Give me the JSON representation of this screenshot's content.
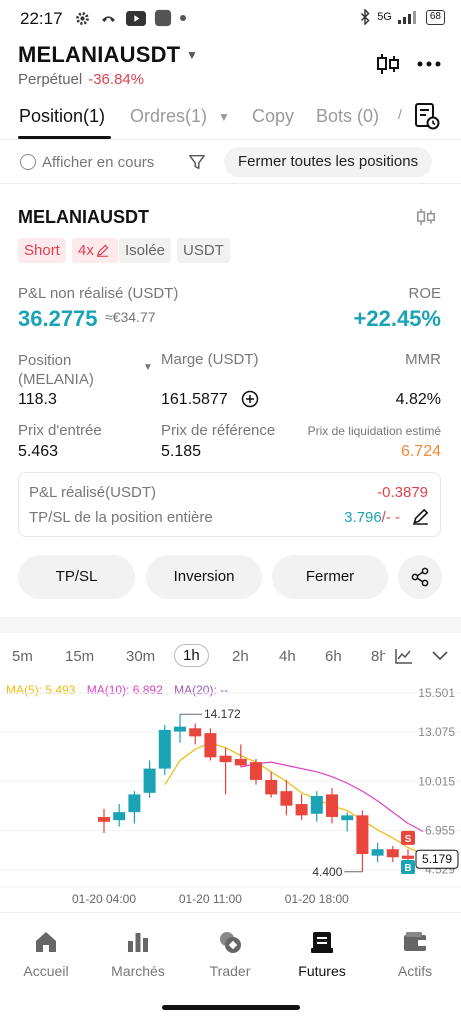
{
  "status_bar": {
    "time": "22:17",
    "signal": "5G",
    "battery": "68"
  },
  "header": {
    "symbol": "MELANIAUSDT",
    "contract_type": "Perpétuel",
    "change": "-36.84%"
  },
  "tabs": [
    {
      "label": "Position(1)",
      "active": true
    },
    {
      "label": "Ordres(1)"
    },
    {
      "label": "Copy"
    },
    {
      "label": "Bots (0)"
    }
  ],
  "filter": {
    "show_current_label": "Afficher en cours",
    "close_all_label": "Fermer toutes les positions"
  },
  "position": {
    "symbol": "MELANIAUSDT",
    "tags": {
      "side": "Short",
      "leverage": "4x",
      "margin_mode": "Isolée",
      "asset": "USDT"
    },
    "pnl_label": "P&L non réalisé (USDT)",
    "pnl_value": "36.2775",
    "pnl_fiat": "≈€34.77",
    "roe_label": "ROE",
    "roe_value": "+22.45%",
    "size_label": "Position (MELANIA)",
    "size_value": "118.3",
    "margin_label": "Marge (USDT)",
    "margin_value": "161.5877",
    "mmr_label": "MMR",
    "mmr_value": "4.82%",
    "entry_label": "Prix d'entrée",
    "entry_value": "5.463",
    "mark_label": "Prix de référence",
    "mark_value": "5.185",
    "liq_label": "Prix de liquidation estimé",
    "liq_value": "6.724",
    "realized_label": "P&L réalisé(USDT)",
    "realized_value": "-0.3879",
    "tpsl_label": "TP/SL de la position entière",
    "tpsl_value": "3.796",
    "tpsl_suffix": "/- -"
  },
  "actions": {
    "tpsl": "TP/SL",
    "reverse": "Inversion",
    "close": "Fermer"
  },
  "chart": {
    "timeframes": [
      "5m",
      "15m",
      "30m",
      "1h",
      "2h",
      "4h",
      "6h",
      "8h"
    ],
    "active_timeframe": "1h",
    "ma5": "MA(5): 5.493",
    "ma10": "MA(10): 6.892",
    "ma20": "MA(20): --",
    "colors": {
      "up": "#1aa3b4",
      "down": "#e8453c",
      "ma5": "#f0b90b",
      "ma10": "#e040c8",
      "ma20": "#9b59b6"
    }
  },
  "chart_data": {
    "type": "candlestick",
    "y_ticks": [
      "15.501",
      "13.075",
      "10.015",
      "6.955",
      "4.529"
    ],
    "x_ticks": [
      "01-20 04:00",
      "01-20 11:00",
      "01-20 18:00"
    ],
    "high_label": "14.172",
    "low_label": "4.400",
    "current_price": "5.179",
    "ylim": [
      4.2,
      15.8
    ],
    "candles": [
      {
        "o": 7.8,
        "h": 8.3,
        "l": 6.8,
        "c": 7.5
      },
      {
        "o": 7.6,
        "h": 8.6,
        "l": 7.2,
        "c": 8.1
      },
      {
        "o": 8.1,
        "h": 9.4,
        "l": 7.4,
        "c": 9.2
      },
      {
        "o": 9.3,
        "h": 11.3,
        "l": 9.0,
        "c": 10.8
      },
      {
        "o": 10.8,
        "h": 13.5,
        "l": 10.4,
        "c": 13.2
      },
      {
        "o": 13.1,
        "h": 14.172,
        "l": 12.4,
        "c": 13.4
      },
      {
        "o": 13.3,
        "h": 13.6,
        "l": 12.3,
        "c": 12.8
      },
      {
        "o": 13.0,
        "h": 13.3,
        "l": 11.3,
        "c": 11.5
      },
      {
        "o": 11.6,
        "h": 12.1,
        "l": 9.2,
        "c": 11.2
      },
      {
        "o": 11.4,
        "h": 12.3,
        "l": 10.9,
        "c": 11.0
      },
      {
        "o": 11.2,
        "h": 11.4,
        "l": 9.8,
        "c": 10.1
      },
      {
        "o": 10.1,
        "h": 10.6,
        "l": 9.0,
        "c": 9.2
      },
      {
        "o": 9.4,
        "h": 10.1,
        "l": 7.9,
        "c": 8.5
      },
      {
        "o": 8.6,
        "h": 9.2,
        "l": 7.6,
        "c": 7.9
      },
      {
        "o": 8.0,
        "h": 9.4,
        "l": 7.5,
        "c": 9.1
      },
      {
        "o": 9.2,
        "h": 9.6,
        "l": 7.4,
        "c": 7.8
      },
      {
        "o": 7.6,
        "h": 8.1,
        "l": 6.9,
        "c": 7.9
      },
      {
        "o": 7.9,
        "h": 8.2,
        "l": 4.4,
        "c": 5.5
      },
      {
        "o": 5.4,
        "h": 6.2,
        "l": 5.0,
        "c": 5.8
      },
      {
        "o": 5.8,
        "h": 6.0,
        "l": 5.0,
        "c": 5.3
      },
      {
        "o": 5.4,
        "h": 5.8,
        "l": 5.0,
        "c": 5.2
      },
      {
        "o": 5.2,
        "h": 5.4,
        "l": 5.0,
        "c": 5.18
      }
    ],
    "ma5_values": [
      null,
      null,
      null,
      null,
      9.8,
      11.3,
      12.0,
      12.4,
      12.1,
      11.6,
      11.2,
      10.6,
      10.0,
      9.3,
      8.9,
      8.5,
      8.2,
      7.6,
      7.0,
      6.5,
      5.9,
      5.5
    ],
    "ma10_values": [
      null,
      null,
      null,
      null,
      null,
      null,
      null,
      null,
      null,
      10.9,
      11.1,
      11.2,
      11.0,
      10.8,
      10.6,
      10.3,
      9.9,
      9.4,
      8.8,
      8.1,
      7.4,
      6.9
    ],
    "markers": [
      {
        "index": 20,
        "label": "S"
      },
      {
        "index": 20,
        "label": "B"
      }
    ]
  },
  "nav": [
    {
      "label": "Accueil"
    },
    {
      "label": "Marchés"
    },
    {
      "label": "Trader"
    },
    {
      "label": "Futures",
      "active": true
    },
    {
      "label": "Actifs"
    }
  ]
}
